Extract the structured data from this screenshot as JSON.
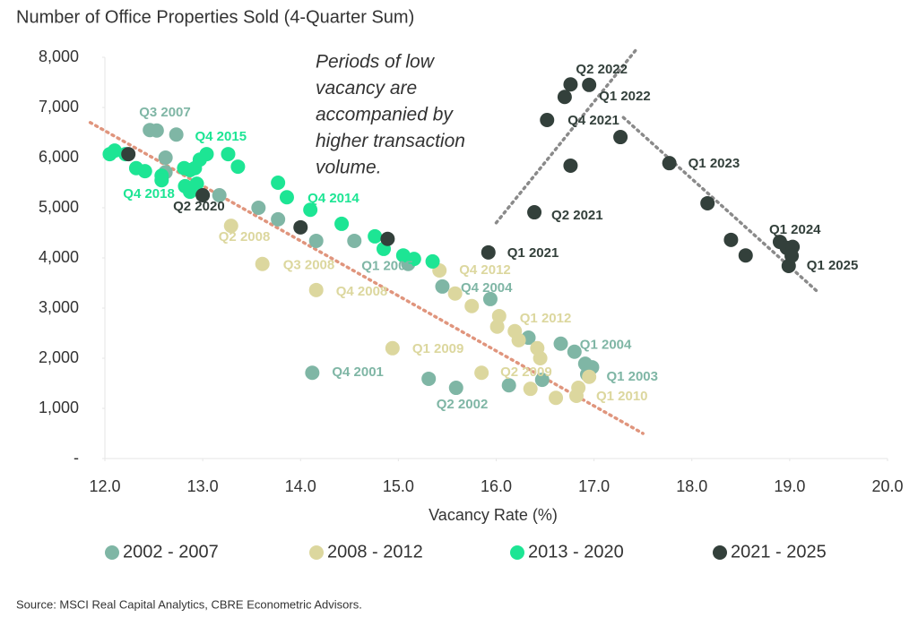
{
  "chart_data": {
    "type": "scatter",
    "title": "Number of Office Properties Sold (4-Quarter Sum)",
    "x_label": "Vacancy Rate (%)",
    "annotation": [
      "Periods of low",
      "vacancy are",
      "accompanied by",
      "higher transaction",
      "volume."
    ],
    "source": "Source: MSCI Real Capital Analytics, CBRE Econometric Advisors.",
    "xlim": [
      12,
      20
    ],
    "ylim": [
      0,
      8000
    ],
    "xticks": [
      {
        "value": 12,
        "label": "12.0"
      },
      {
        "value": 13,
        "label": "13.0"
      },
      {
        "value": 14,
        "label": "14.0"
      },
      {
        "value": 15,
        "label": "15.0"
      },
      {
        "value": 16,
        "label": "16.0"
      },
      {
        "value": 17,
        "label": "17.0"
      },
      {
        "value": 18,
        "label": "18.0"
      },
      {
        "value": 19,
        "label": "19.0"
      },
      {
        "value": 20,
        "label": "20.0"
      }
    ],
    "yticks": [
      {
        "value": 0,
        "label": "-"
      },
      {
        "value": 1000,
        "label": "1,000"
      },
      {
        "value": 2000,
        "label": "2,000"
      },
      {
        "value": 3000,
        "label": "3,000"
      },
      {
        "value": 4000,
        "label": "4,000"
      },
      {
        "value": 5000,
        "label": "5,000"
      },
      {
        "value": 6000,
        "label": "6,000"
      },
      {
        "value": 7000,
        "label": "7,000"
      },
      {
        "value": 8000,
        "label": "8,000"
      }
    ],
    "series": [
      {
        "name": "2002 - 2007",
        "color": "#7fb6a5",
        "x": [
          12.46,
          12.53,
          12.73,
          12.62,
          12.62,
          13.17,
          13.57,
          13.77,
          14.16,
          14.55,
          15.1,
          15.45,
          15.94,
          16.33,
          16.66,
          16.8,
          16.91,
          16.98,
          16.93,
          14.12,
          15.31,
          15.59,
          16.13,
          16.47
        ],
        "values": [
          6550,
          6540,
          6460,
          6000,
          5710,
          5250,
          5000,
          4770,
          4340,
          4340,
          3880,
          3430,
          3180,
          2410,
          2290,
          2130,
          1890,
          1820,
          1680,
          1710,
          1590,
          1410,
          1460,
          1570
        ],
        "labels": [
          "Q3 2007",
          null,
          null,
          null,
          null,
          null,
          null,
          null,
          null,
          null,
          "Q1 2005",
          null,
          "Q4 2004",
          null,
          null,
          "Q1 2004",
          null,
          "Q1 2003",
          null,
          "Q4 2001",
          null,
          "Q2 2002",
          null,
          null
        ]
      },
      {
        "name": "2008 - 2012",
        "color": "#dcd79e",
        "x": [
          13.29,
          13.61,
          14.16,
          15.42,
          15.58,
          15.75,
          16.03,
          16.01,
          16.19,
          16.23,
          16.42,
          16.45,
          14.94,
          15.85,
          16.35,
          16.61,
          16.95,
          16.84,
          16.82
        ],
        "values": [
          4640,
          3880,
          3360,
          3750,
          3290,
          3040,
          2840,
          2630,
          2540,
          2360,
          2200,
          2000,
          2200,
          1710,
          1390,
          1210,
          1630,
          1410,
          1250
        ],
        "labels": [
          "Q2 2008",
          "Q3 2008",
          "Q4 2008",
          "Q4 2012",
          null,
          null,
          "Q1 2012",
          null,
          null,
          null,
          null,
          null,
          "Q1 2009",
          "Q2 2009",
          null,
          null,
          null,
          null,
          "Q1 2010"
        ]
      },
      {
        "name": "2013 - 2020",
        "color": "#1de594",
        "x": [
          12.05,
          12.1,
          12.21,
          12.32,
          12.41,
          12.58,
          12.58,
          12.81,
          12.87,
          12.92,
          12.97,
          13.04,
          12.82,
          12.87,
          12.94,
          13.26,
          13.36,
          13.77,
          13.86,
          14.1,
          14.42,
          14.76,
          14.85,
          15.05,
          15.16,
          15.35
        ],
        "values": [
          6070,
          6140,
          6070,
          5790,
          5730,
          5640,
          5550,
          5790,
          5750,
          5790,
          5960,
          6070,
          5430,
          5320,
          5480,
          6070,
          5820,
          5500,
          5210,
          4960,
          4680,
          4430,
          4180,
          4050,
          3980,
          3930
        ],
        "labels": [
          null,
          null,
          null,
          null,
          null,
          null,
          "Q4 2018",
          null,
          null,
          null,
          null,
          null,
          null,
          null,
          null,
          "Q4 2015",
          null,
          null,
          null,
          "Q4 2014",
          null,
          null,
          null,
          null,
          null,
          null
        ]
      },
      {
        "name": "2021 - 2025",
        "color": "#33403b",
        "x": [
          12.24,
          13.0,
          14.0,
          14.89,
          15.92,
          16.39,
          16.76,
          16.52,
          16.7,
          16.76,
          16.95,
          17.27,
          17.77,
          18.16,
          18.4,
          18.55,
          18.9,
          18.97,
          19.03,
          18.99,
          19.02
        ],
        "values": [
          6070,
          5250,
          4610,
          4380,
          4110,
          4910,
          5840,
          6750,
          7210,
          7460,
          7450,
          6410,
          5890,
          5090,
          4360,
          4050,
          4320,
          4200,
          4220,
          3840,
          4040
        ],
        "labels": [
          null,
          "Q2 2020",
          null,
          null,
          "Q1 2021",
          "Q2 2021",
          null,
          "Q4 2021",
          null,
          "Q2 2022",
          "Q1 2022",
          null,
          "Q1 2023",
          null,
          null,
          null,
          "Q1 2024",
          null,
          null,
          "Q1 2025",
          null
        ]
      }
    ],
    "trend_lines": [
      {
        "color": "#e0957d",
        "x": [
          11.85,
          17.5
        ],
        "y": [
          6700,
          500
        ]
      },
      {
        "color": "#8a8a8a",
        "x": [
          16.0,
          17.45
        ],
        "y": [
          4700,
          8200
        ]
      },
      {
        "color": "#8a8a8a",
        "x": [
          17.3,
          19.3
        ],
        "y": [
          6800,
          3300
        ]
      }
    ]
  }
}
